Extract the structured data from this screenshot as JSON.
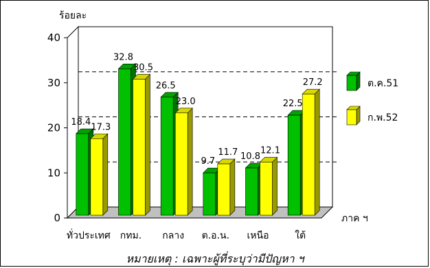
{
  "chart_data": {
    "type": "bar",
    "ylabel": "ร้อยละ",
    "xlabel": "ภาค ฯ",
    "ylim": [
      0,
      40
    ],
    "yticks": [
      0,
      10,
      20,
      30,
      40
    ],
    "categories": [
      "ทั่วประเทศ",
      "กทม.",
      "กลาง",
      "ต.อ.น.",
      "เหนือ",
      "ใต้"
    ],
    "series": [
      {
        "name": "ต.ค.51",
        "color": "#00c000",
        "values": [
          18.4,
          32.8,
          26.5,
          9.7,
          10.8,
          22.5
        ]
      },
      {
        "name": "ก.พ.52",
        "color": "#ffff00",
        "values": [
          17.3,
          30.5,
          23.0,
          11.7,
          12.1,
          27.2
        ]
      }
    ],
    "value_labels": [
      [
        "18.4",
        "32.8",
        "26.5",
        "9.7",
        "10.8",
        "22.5"
      ],
      [
        "17.3",
        "30.5",
        "23.0",
        "11.7",
        "12.1",
        "27.2"
      ]
    ],
    "dashed_gridlines_at": [
      10,
      20,
      30
    ],
    "legend_position": "right"
  },
  "footnote": "หมายเหตุ  :  เฉพาะผู้ที่ระบุว่ามีปัญหา ฯ"
}
